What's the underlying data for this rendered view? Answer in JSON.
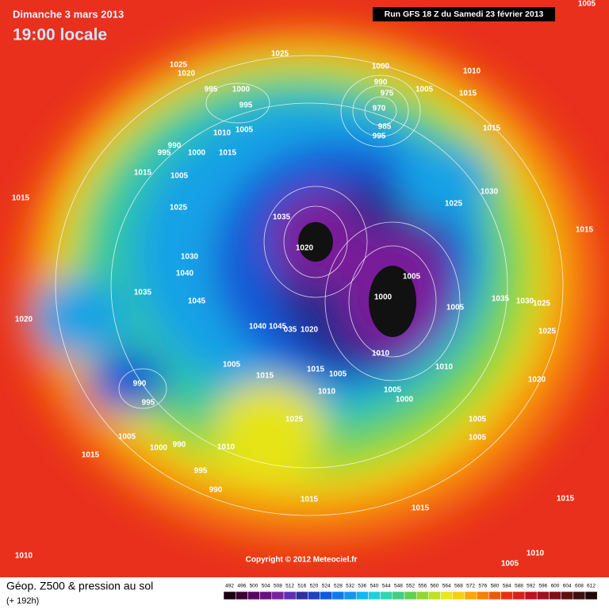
{
  "header": {
    "date": "Dimanche 3 mars 2013",
    "time": "19:00 locale",
    "run": "Run GFS 18 Z du Samedi 23 février 2013"
  },
  "copyright": "Copyright © 2012 Meteociel.fr",
  "footer": {
    "title": "Géop. Z500 & pression au sol",
    "lead": "(+ 192h)",
    "scale": [
      "492",
      "496",
      "500",
      "504",
      "508",
      "512",
      "516",
      "520",
      "524",
      "528",
      "532",
      "536",
      "540",
      "544",
      "548",
      "552",
      "556",
      "560",
      "564",
      "568",
      "572",
      "576",
      "580",
      "584",
      "588",
      "592",
      "596",
      "600",
      "604",
      "608",
      "612"
    ]
  },
  "pressure_labels": [
    "1005",
    "1025",
    "1020",
    "1025",
    "1000",
    "1010",
    "990",
    "975",
    "995",
    "1000",
    "995",
    "1005",
    "1015",
    "970",
    "985",
    "995",
    "1005",
    "1010",
    "1015",
    "990",
    "995",
    "1000",
    "1015",
    "1015",
    "1005",
    "1030",
    "1025",
    "1015",
    "1025",
    "1035",
    "1015",
    "1020",
    "1030",
    "1040",
    "1005",
    "1035",
    "1045",
    "1000",
    "1035",
    "1030",
    "1025",
    "1005",
    "1020",
    "1040",
    "1045",
    "035",
    "1020",
    "1025",
    "1010",
    "1005",
    "1015",
    "1010",
    "1005",
    "1015",
    "1020",
    "990",
    "1010",
    "1005",
    "995",
    "1000",
    "1025",
    "1005",
    "1005",
    "990",
    "1000",
    "1010",
    "1005",
    "1015",
    "995",
    "990",
    "1015",
    "1015",
    "1015",
    "1010",
    "1010",
    "1005"
  ]
}
